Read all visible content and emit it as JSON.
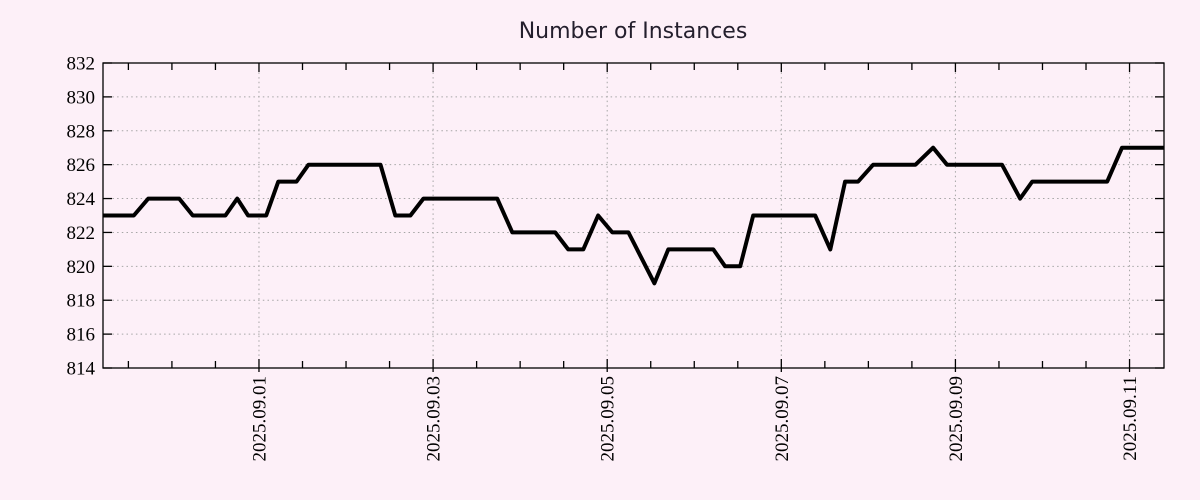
{
  "chart_data": {
    "type": "line",
    "title": "Number of Instances",
    "xlabel": "",
    "ylabel": "",
    "ylim": [
      814,
      832
    ],
    "y_tick_step": 2,
    "y_tick_labels": [
      "814",
      "816",
      "818",
      "820",
      "822",
      "824",
      "826",
      "828",
      "830",
      "832"
    ],
    "x_tick_labels": [
      "2025.09.01",
      "2025.09.03",
      "2025.09.05",
      "2025.09.07",
      "2025.09.09",
      "2025.09.11"
    ],
    "x_minor_tick_hours": 12,
    "xlim_time": [
      "2025-08-30T05:00",
      "2025-09-11T09:30"
    ],
    "grid": true,
    "legend_position": "none",
    "colors": {
      "line": "#000000",
      "grid": "#a6a6a6",
      "axis": "#000000",
      "background": "#fdf0f8",
      "title_text": "#241f2d",
      "tick_text": "#000000"
    },
    "series": [
      {
        "name": "Number of Instances",
        "points": [
          [
            "2025-08-30T05:00",
            823
          ],
          [
            "2025-08-30T13:30",
            823
          ],
          [
            "2025-08-30T17:30",
            824
          ],
          [
            "2025-08-31T02:00",
            824
          ],
          [
            "2025-08-31T05:45",
            823
          ],
          [
            "2025-08-31T14:45",
            823
          ],
          [
            "2025-08-31T18:00",
            824
          ],
          [
            "2025-08-31T21:00",
            823
          ],
          [
            "2025-09-01T02:00",
            823
          ],
          [
            "2025-09-01T05:20",
            825
          ],
          [
            "2025-09-01T10:20",
            825
          ],
          [
            "2025-09-01T13:40",
            826
          ],
          [
            "2025-09-02T09:30",
            826
          ],
          [
            "2025-09-02T13:35",
            823
          ],
          [
            "2025-09-02T17:45",
            823
          ],
          [
            "2025-09-02T21:20",
            824
          ],
          [
            "2025-09-03T17:40",
            824
          ],
          [
            "2025-09-03T21:50",
            822
          ],
          [
            "2025-09-04T09:40",
            822
          ],
          [
            "2025-09-04T13:15",
            821
          ],
          [
            "2025-09-04T17:25",
            821
          ],
          [
            "2025-09-04T21:30",
            823
          ],
          [
            "2025-09-05T01:25",
            822
          ],
          [
            "2025-09-05T05:50",
            822
          ],
          [
            "2025-09-05T13:00",
            819
          ],
          [
            "2025-09-05T16:50",
            821
          ],
          [
            "2025-09-06T05:15",
            821
          ],
          [
            "2025-09-06T08:30",
            820
          ],
          [
            "2025-09-06T12:40",
            820
          ],
          [
            "2025-09-06T16:15",
            823
          ],
          [
            "2025-09-07T09:20",
            823
          ],
          [
            "2025-09-07T13:30",
            821
          ],
          [
            "2025-09-07T17:35",
            825
          ],
          [
            "2025-09-07T21:10",
            825
          ],
          [
            "2025-09-08T01:20",
            826
          ],
          [
            "2025-09-08T13:00",
            826
          ],
          [
            "2025-09-08T17:50",
            827
          ],
          [
            "2025-09-08T21:40",
            826
          ],
          [
            "2025-09-09T12:50",
            826
          ],
          [
            "2025-09-09T17:50",
            824
          ],
          [
            "2025-09-09T21:10",
            825
          ],
          [
            "2025-09-10T17:50",
            825
          ],
          [
            "2025-09-10T21:55",
            827
          ],
          [
            "2025-09-11T09:30",
            827
          ]
        ]
      }
    ]
  }
}
